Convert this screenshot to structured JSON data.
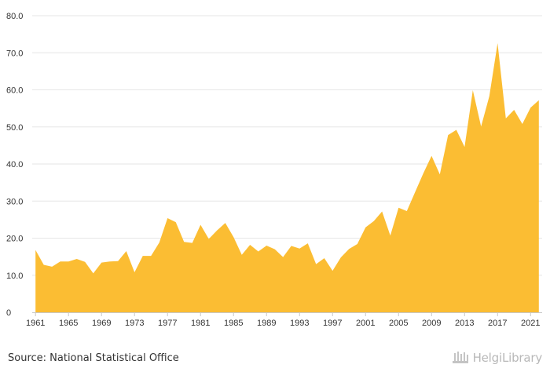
{
  "chart_data": {
    "type": "area",
    "title": "",
    "xlabel": "",
    "ylabel": "",
    "x": [
      1961,
      1962,
      1963,
      1964,
      1965,
      1966,
      1967,
      1968,
      1969,
      1970,
      1971,
      1972,
      1973,
      1974,
      1975,
      1976,
      1977,
      1978,
      1979,
      1980,
      1981,
      1982,
      1983,
      1984,
      1985,
      1986,
      1987,
      1988,
      1989,
      1990,
      1991,
      1992,
      1993,
      1994,
      1995,
      1996,
      1997,
      1998,
      1999,
      2000,
      2001,
      2002,
      2003,
      2004,
      2005,
      2006,
      2007,
      2008,
      2009,
      2010,
      2011,
      2012,
      2013,
      2014,
      2015,
      2016,
      2017,
      2018,
      2019,
      2020,
      2021,
      2022
    ],
    "series": [
      {
        "values": [
          16.8,
          12.8,
          12.3,
          13.7,
          13.7,
          14.4,
          13.6,
          10.5,
          13.4,
          13.7,
          13.8,
          16.5,
          10.8,
          15.2,
          15.2,
          18.8,
          25.4,
          24.3,
          19.0,
          18.7,
          23.6,
          19.8,
          22.1,
          24.1,
          20.3,
          15.5,
          18.2,
          16.4,
          18.0,
          17.0,
          14.9,
          17.9,
          17.2,
          18.6,
          13.0,
          14.6,
          11.2,
          14.8,
          17.1,
          18.4,
          22.9,
          24.6,
          27.2,
          20.7,
          28.2,
          27.3,
          32.4,
          37.5,
          42.2,
          37.2,
          47.8,
          49.2,
          44.6,
          59.9,
          50.1,
          58.3,
          72.6,
          52.3,
          54.6,
          50.8,
          55.2,
          57.2
        ]
      }
    ],
    "xticks": [
      "1961",
      "1965",
      "1969",
      "1973",
      "1977",
      "1981",
      "1985",
      "1989",
      "1993",
      "1997",
      "2001",
      "2005",
      "2009",
      "2013",
      "2017",
      "2021"
    ],
    "yticks": [
      "0",
      "10.0",
      "20.0",
      "30.0",
      "40.0",
      "50.0",
      "60.0",
      "70.0",
      "80.0"
    ],
    "ylim": [
      0,
      80
    ],
    "grid": true,
    "legend": "none",
    "fill_color": "#fbbd33",
    "grid_color": "#e6e6e6"
  },
  "footer": {
    "source": "Source: National Statistical Office",
    "logo_text": "HelgiLibrary"
  }
}
